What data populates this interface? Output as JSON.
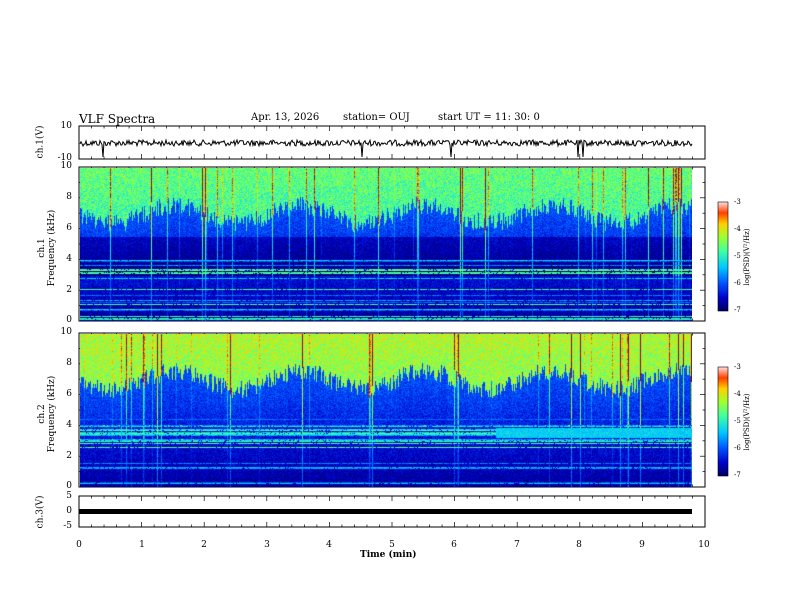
{
  "header": {
    "title": "VLF Spectra",
    "date": "Apr. 13, 2026",
    "station": "station= OUJ",
    "start": "start  UT =   11: 30: 0"
  },
  "colors": {
    "colormap": [
      "#000060",
      "#0000c8",
      "#0050ff",
      "#00c8ff",
      "#40ffa0",
      "#a0ff30",
      "#ffd000",
      "#ff4000",
      "#a00000"
    ]
  },
  "chart_data": [
    {
      "type": "line",
      "name": "ch.1 waveform",
      "ylabel": "ch.1(V)",
      "ylim": [
        -10,
        10
      ],
      "yticks": [
        "10",
        "-10"
      ],
      "baseline": 0,
      "xlim": [
        0,
        10
      ]
    },
    {
      "type": "heatmap",
      "name": "ch.1 spectrogram",
      "ylabel": "ch.1\nFrequency (kHz)",
      "ylim": [
        0,
        10
      ],
      "yticks": [
        "10",
        "8",
        "6",
        "4",
        "2",
        "0"
      ],
      "xlim": [
        0,
        10
      ],
      "colorbar": {
        "label": "log(PSD)(V²/Hz)",
        "range": [
          -7,
          -3
        ],
        "ticks": [
          "-3",
          "-4",
          "-5",
          "-6",
          "-7"
        ]
      }
    },
    {
      "type": "heatmap",
      "name": "ch.2 spectrogram",
      "ylabel": "ch.2\nFrequency (kHz)",
      "ylim": [
        0,
        10
      ],
      "yticks": [
        "10",
        "8",
        "6",
        "4",
        "2",
        "0"
      ],
      "xlim": [
        0,
        10
      ],
      "colorbar": {
        "label": "log(PSD)(V²/Hz)",
        "range": [
          -7,
          -3
        ],
        "ticks": [
          "-3",
          "-4",
          "-5",
          "-6",
          "-7"
        ]
      }
    },
    {
      "type": "line",
      "name": "ch.3 waveform",
      "ylabel": "ch.3(V)",
      "ylim": [
        -5,
        5
      ],
      "yticks": [
        "5",
        "0",
        "-5"
      ],
      "baseline": 0,
      "xlim": [
        0,
        10
      ]
    }
  ],
  "xaxis": {
    "label": "Time  (min)",
    "ticks": [
      "0",
      "1",
      "2",
      "3",
      "4",
      "5",
      "6",
      "7",
      "8",
      "9",
      "10"
    ]
  }
}
